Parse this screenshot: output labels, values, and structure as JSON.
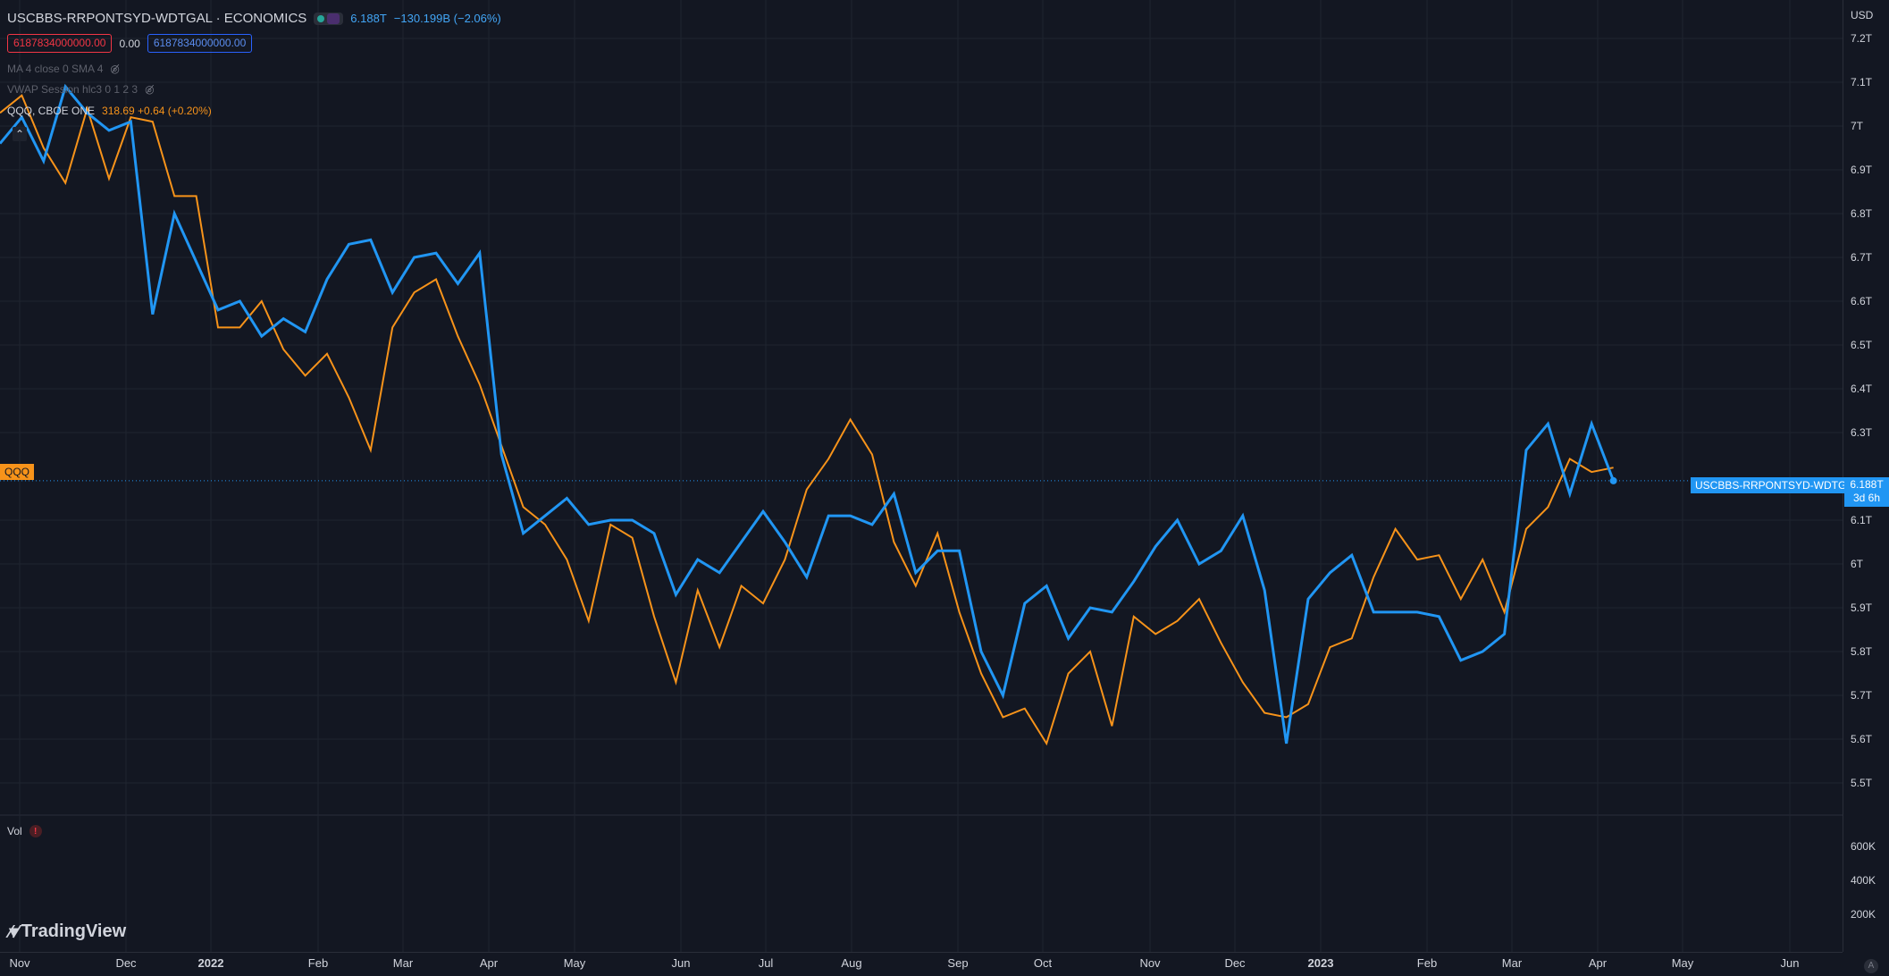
{
  "header": {
    "symbol_title": "USCBBS-RRPONTSYD-WDTGAL · ECONOMICS",
    "price": "6.188T",
    "change": "−130.199B (−2.06%)",
    "box_red": "6187834000000.00",
    "box_mid": "0.00",
    "box_blue": "6187834000000.00",
    "ma_label": "MA 4 close 0 SMA 4",
    "vwap_label": "VWAP Session hlc3 0 1 2 3",
    "qqq_label": "QQQ, CBOE ONE",
    "qqq_values": "318.69 +0.64 (+0.20%)",
    "collapse_icon": "chevron-up-icon",
    "eye_icon": "eye-off-icon"
  },
  "volume": {
    "label": "Vol",
    "warning": "!"
  },
  "axis": {
    "currency": "USD",
    "y_ticks": [
      "7.2T",
      "7.1T",
      "7T",
      "6.9T",
      "6.8T",
      "6.7T",
      "6.6T",
      "6.5T",
      "6.4T",
      "6.3T",
      "6.1T",
      "6T",
      "5.9T",
      "5.8T",
      "5.7T",
      "5.6T",
      "5.5T"
    ],
    "vol_ticks": [
      "600K",
      "400K",
      "200K"
    ],
    "x_ticks": [
      "Nov",
      "Dec",
      "2022",
      "Feb",
      "Mar",
      "Apr",
      "May",
      "Jun",
      "Jul",
      "Aug",
      "Sep",
      "Oct",
      "Nov",
      "Dec",
      "2023",
      "Feb",
      "Mar",
      "Apr",
      "May",
      "Jun"
    ]
  },
  "tags": {
    "qqq": "QQQ",
    "series": "USCBBS-RRPONTSYD-WDTGAL",
    "price": "6.188T",
    "countdown": "3d 6h"
  },
  "logo": {
    "text": "TradingView",
    "icon": "tradingview-logo-icon"
  },
  "corner_button": "A",
  "colors": {
    "background": "#131722",
    "grid": "#2a2e39",
    "main_series": "#2196f3",
    "qqq_series": "#f7931a"
  },
  "chart_data": {
    "type": "line",
    "ylim": [
      5.44,
      7.24
    ],
    "y_unit": "T",
    "x": [
      "2021-11-01",
      "2021-11-08",
      "2021-11-15",
      "2021-11-22",
      "2021-11-29",
      "2021-12-06",
      "2021-12-13",
      "2021-12-20",
      "2021-12-27",
      "2022-01-03",
      "2022-01-10",
      "2022-01-17",
      "2022-01-24",
      "2022-01-31",
      "2022-02-07",
      "2022-02-14",
      "2022-02-21",
      "2022-02-28",
      "2022-03-07",
      "2022-03-14",
      "2022-03-21",
      "2022-03-28",
      "2022-04-04",
      "2022-04-11",
      "2022-04-18",
      "2022-04-25",
      "2022-05-02",
      "2022-05-09",
      "2022-05-16",
      "2022-05-23",
      "2022-05-30",
      "2022-06-06",
      "2022-06-13",
      "2022-06-20",
      "2022-06-27",
      "2022-07-04",
      "2022-07-11",
      "2022-07-18",
      "2022-07-25",
      "2022-08-01",
      "2022-08-08",
      "2022-08-15",
      "2022-08-22",
      "2022-08-29",
      "2022-09-05",
      "2022-09-12",
      "2022-09-19",
      "2022-09-26",
      "2022-10-03",
      "2022-10-10",
      "2022-10-17",
      "2022-10-24",
      "2022-10-31",
      "2022-11-07",
      "2022-11-14",
      "2022-11-21",
      "2022-11-28",
      "2022-12-05",
      "2022-12-12",
      "2022-12-19",
      "2022-12-26",
      "2023-01-02",
      "2023-01-09",
      "2023-01-16",
      "2023-01-23",
      "2023-01-30",
      "2023-02-06",
      "2023-02-13",
      "2023-02-20",
      "2023-02-27",
      "2023-03-06",
      "2023-03-13",
      "2023-03-20",
      "2023-03-27",
      "2023-04-03"
    ],
    "series": [
      {
        "values": [
          6.96,
          7.02,
          6.92,
          7.09,
          7.03,
          6.99,
          7.01,
          6.57,
          6.8,
          6.69,
          6.58,
          6.6,
          6.52,
          6.56,
          6.53,
          6.65,
          6.73,
          6.74,
          6.62,
          6.7,
          6.71,
          6.64,
          6.71,
          6.25,
          6.07,
          6.11,
          6.15,
          6.09,
          6.1,
          6.1,
          6.07,
          5.93,
          6.01,
          5.98,
          6.05,
          6.12,
          6.05,
          5.97,
          6.11,
          6.11,
          6.09,
          6.16,
          5.98,
          6.03,
          6.03,
          5.8,
          5.7,
          5.91,
          5.95,
          5.83,
          5.9,
          5.89,
          5.96,
          6.04,
          6.1,
          6.0,
          6.03,
          6.11,
          5.94,
          5.59,
          5.92,
          5.98,
          6.02,
          5.89,
          5.89,
          5.89,
          5.88,
          5.78,
          5.8,
          5.84,
          6.26,
          6.32,
          6.16,
          6.32,
          6.19
        ]
      },
      {
        "values": [
          7.03,
          7.07,
          6.95,
          6.87,
          7.04,
          6.88,
          7.02,
          7.01,
          6.84,
          6.84,
          6.54,
          6.54,
          6.6,
          6.49,
          6.43,
          6.48,
          6.38,
          6.26,
          6.54,
          6.62,
          6.65,
          6.52,
          6.41,
          6.27,
          6.13,
          6.09,
          6.01,
          5.87,
          6.09,
          6.06,
          5.88,
          5.73,
          5.94,
          5.81,
          5.95,
          5.91,
          6.01,
          6.17,
          6.24,
          6.33,
          6.25,
          6.05,
          5.95,
          6.07,
          5.89,
          5.75,
          5.65,
          5.67,
          5.59,
          5.75,
          5.8,
          5.63,
          5.88,
          5.84,
          5.87,
          5.92,
          5.82,
          5.73,
          5.66,
          5.65,
          5.68,
          5.81,
          5.83,
          5.97,
          6.08,
          6.01,
          6.02,
          5.92,
          6.01,
          5.89,
          6.08,
          6.13,
          6.24,
          6.21,
          6.22
        ]
      }
    ],
    "volume_ticks": [
      600000,
      400000,
      200000
    ]
  }
}
